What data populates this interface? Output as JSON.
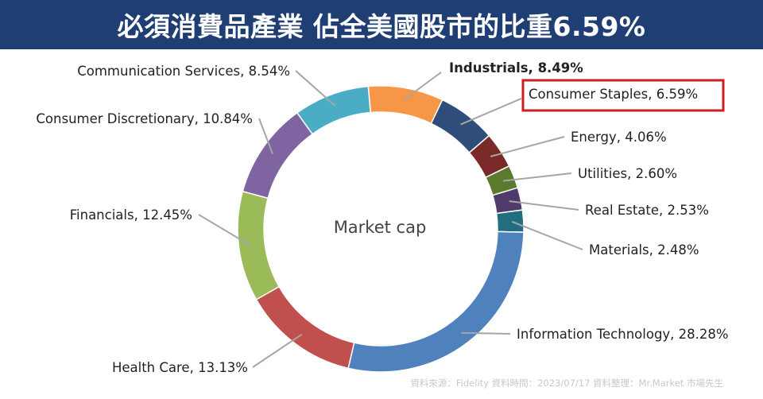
{
  "title": "必須消費品產業 佔全美國股市的比重6.59%",
  "source_note": "資料來源：Fidelity  資料時間：2023/07/17  資料整理：Mr.Market 市場先生",
  "chart_data": {
    "type": "pie",
    "donut": true,
    "center_label": "Market cap",
    "legend": "none",
    "highlight": "Consumer Staples",
    "slices": [
      {
        "name": "Industrials",
        "value": 8.49,
        "label": "Industrials, 8.49%",
        "color": "#f79646",
        "bold": true
      },
      {
        "name": "Consumer Staples",
        "value": 6.59,
        "label": "Consumer Staples, 6.59%",
        "color": "#2e4d7b"
      },
      {
        "name": "Energy",
        "value": 4.06,
        "label": "Energy, 4.06%",
        "color": "#7b2a2a"
      },
      {
        "name": "Utilities",
        "value": 2.6,
        "label": "Utilities, 2.60%",
        "color": "#5a7a2e"
      },
      {
        "name": "Real Estate",
        "value": 2.53,
        "label": "Real Estate, 2.53%",
        "color": "#4e3a6b"
      },
      {
        "name": "Materials",
        "value": 2.48,
        "label": "Materials, 2.48%",
        "color": "#226d80"
      },
      {
        "name": "Information Technology",
        "value": 28.28,
        "label": "Information Technology, 28.28%",
        "color": "#4f81bd"
      },
      {
        "name": "Health Care",
        "value": 13.13,
        "label": "Health Care, 13.13%",
        "color": "#c0504d"
      },
      {
        "name": "Financials",
        "value": 12.45,
        "label": "Financials, 12.45%",
        "color": "#9bbb59"
      },
      {
        "name": "Consumer Discretionary",
        "value": 10.84,
        "label": "Consumer Discretionary, 10.84%",
        "color": "#8064a2"
      },
      {
        "name": "Communication Services",
        "value": 8.54,
        "label": "Communication Services, 8.54%",
        "color": "#4bacc6"
      }
    ]
  }
}
